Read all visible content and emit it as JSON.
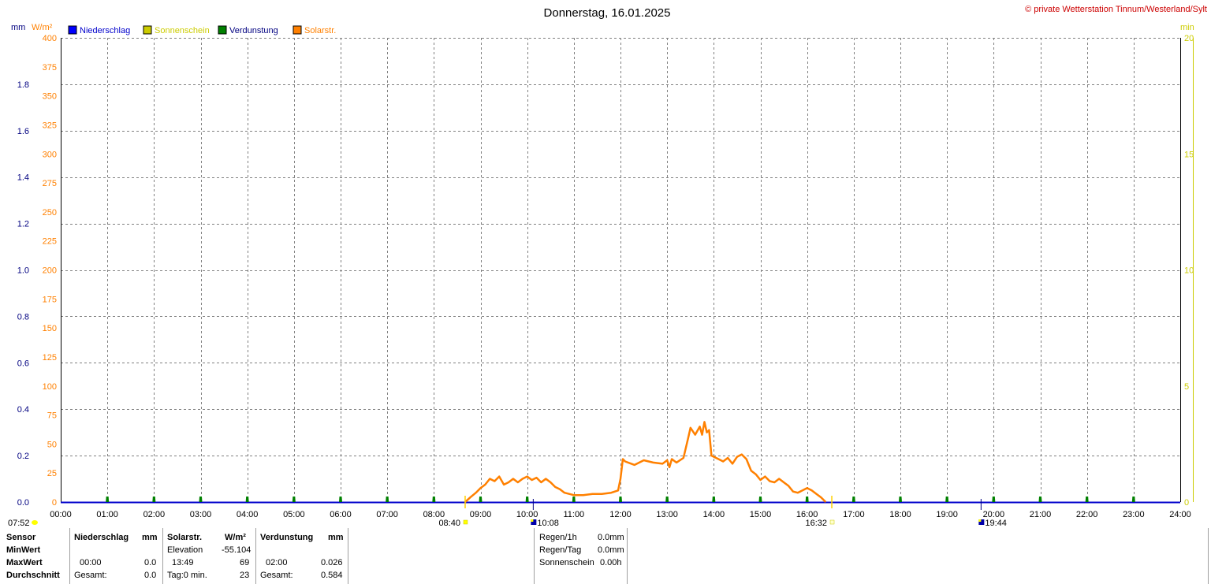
{
  "header": {
    "title": "Donnerstag, 16.01.2025",
    "copyright": "© private Wetterstation Tinnum/Westerland/Sylt"
  },
  "units": {
    "mm": "mm",
    "wm2": "W/m²",
    "min": "min"
  },
  "legend": [
    {
      "label": "Niederschlag",
      "color": "#0000ff",
      "text_color": "#0000cc"
    },
    {
      "label": "Sonnenschein",
      "color": "#cccc00",
      "text_color": "#cccc00"
    },
    {
      "label": "Verdunstung",
      "color": "#008000",
      "text_color": "#000080"
    },
    {
      "label": "Solarstr.",
      "color": "#ff8000",
      "text_color": "#ff8000"
    }
  ],
  "chart_data": {
    "type": "line",
    "title": "Donnerstag, 16.01.2025",
    "x_labels": [
      "00:00",
      "01:00",
      "02:00",
      "03:00",
      "04:00",
      "05:00",
      "06:00",
      "07:00",
      "08:00",
      "09:00",
      "10:00",
      "11:00",
      "12:00",
      "13:00",
      "14:00",
      "15:00",
      "16:00",
      "17:00",
      "18:00",
      "19:00",
      "20:00",
      "21:00",
      "22:00",
      "23:00",
      "24:00"
    ],
    "xlim_hours": [
      0,
      24
    ],
    "y_left_mm": {
      "ticks": [
        "0.0",
        "0.2",
        "0.4",
        "0.6",
        "0.8",
        "1.0",
        "1.2",
        "1.4",
        "1.6",
        "1.8"
      ],
      "ylim": [
        0,
        2.0
      ]
    },
    "y_left_wm2": {
      "ticks": [
        "0",
        "25",
        "50",
        "75",
        "100",
        "125",
        "150",
        "175",
        "200",
        "225",
        "250",
        "275",
        "300",
        "325",
        "350",
        "375",
        "400"
      ],
      "ylim": [
        0,
        400
      ]
    },
    "y_right_min": {
      "ticks": [
        "0",
        "5",
        "10",
        "15",
        "20"
      ],
      "ylim": [
        0,
        20
      ]
    },
    "grid": true,
    "series": [
      {
        "name": "Solarstr.",
        "color": "#ff8000",
        "unit": "W/m²",
        "points": [
          [
            8.67,
            0
          ],
          [
            8.78,
            4
          ],
          [
            8.9,
            8
          ],
          [
            9.0,
            12
          ],
          [
            9.1,
            15
          ],
          [
            9.2,
            20
          ],
          [
            9.3,
            18
          ],
          [
            9.4,
            22
          ],
          [
            9.5,
            15
          ],
          [
            9.6,
            17
          ],
          [
            9.7,
            20
          ],
          [
            9.8,
            17
          ],
          [
            9.9,
            20
          ],
          [
            10.0,
            22
          ],
          [
            10.1,
            19
          ],
          [
            10.2,
            21
          ],
          [
            10.3,
            17
          ],
          [
            10.4,
            20
          ],
          [
            10.5,
            17
          ],
          [
            10.6,
            13
          ],
          [
            10.7,
            11
          ],
          [
            10.8,
            8
          ],
          [
            10.9,
            7
          ],
          [
            11.0,
            6
          ],
          [
            11.2,
            6
          ],
          [
            11.4,
            7
          ],
          [
            11.6,
            7
          ],
          [
            11.8,
            8
          ],
          [
            11.95,
            10
          ],
          [
            12.0,
            20
          ],
          [
            12.05,
            37
          ],
          [
            12.1,
            35
          ],
          [
            12.3,
            32
          ],
          [
            12.5,
            36
          ],
          [
            12.7,
            34
          ],
          [
            12.9,
            33
          ],
          [
            13.0,
            36
          ],
          [
            13.05,
            30
          ],
          [
            13.1,
            37
          ],
          [
            13.2,
            34
          ],
          [
            13.35,
            38
          ],
          [
            13.45,
            55
          ],
          [
            13.5,
            64
          ],
          [
            13.6,
            58
          ],
          [
            13.7,
            65
          ],
          [
            13.75,
            58
          ],
          [
            13.8,
            69
          ],
          [
            13.85,
            60
          ],
          [
            13.9,
            62
          ],
          [
            13.95,
            40
          ],
          [
            14.1,
            37
          ],
          [
            14.2,
            35
          ],
          [
            14.3,
            38
          ],
          [
            14.4,
            33
          ],
          [
            14.5,
            39
          ],
          [
            14.6,
            41
          ],
          [
            14.7,
            37
          ],
          [
            14.8,
            27
          ],
          [
            14.9,
            24
          ],
          [
            15.0,
            19
          ],
          [
            15.1,
            22
          ],
          [
            15.2,
            18
          ],
          [
            15.3,
            17
          ],
          [
            15.4,
            20
          ],
          [
            15.5,
            17
          ],
          [
            15.6,
            14
          ],
          [
            15.7,
            9
          ],
          [
            15.8,
            8
          ],
          [
            15.9,
            10
          ],
          [
            16.0,
            12
          ],
          [
            16.1,
            10
          ],
          [
            16.2,
            7
          ],
          [
            16.3,
            4
          ],
          [
            16.35,
            2
          ],
          [
            16.4,
            0
          ]
        ]
      },
      {
        "name": "Verdunstung",
        "color": "#008000",
        "unit": "mm",
        "markers_hours": [
          1,
          2,
          3,
          4,
          5,
          6,
          7,
          8,
          9,
          10,
          11,
          12,
          13,
          14,
          15,
          16,
          17,
          18,
          19,
          20,
          21,
          22,
          23
        ]
      }
    ],
    "annotations": [
      {
        "label": "07:52",
        "hour": 0.0,
        "icon": "sun"
      },
      {
        "label": "08:40",
        "hour": 8.67,
        "icon": "sunrise"
      },
      {
        "label": "10:08",
        "hour": 10.13,
        "icon": "moon"
      },
      {
        "label": "16:32",
        "hour": 16.53,
        "icon": "sunset"
      },
      {
        "label": "19:44",
        "hour": 19.73,
        "icon": "moon"
      }
    ]
  },
  "stats": {
    "col_sensor": {
      "header": "Sensor",
      "rows": [
        "MinWert",
        "MaxWert",
        "Durchschnitt"
      ]
    },
    "col_rain": {
      "header": "Niederschlag",
      "unit": "mm",
      "max_time": "00:00",
      "max_val": "0.0",
      "total_label": "Gesamt:",
      "total_val": "0.0"
    },
    "col_solar": {
      "header": "Solarstr.",
      "unit": "W/m²",
      "min_label": "Elevation",
      "min_val": "-55.104",
      "max_time": "13:49",
      "max_val": "69",
      "day_label": "Tag:0 min.",
      "avg_val": "23"
    },
    "col_evap": {
      "header": "Verdunstung",
      "unit": "mm",
      "max_time": "02:00",
      "max_val": "0.026",
      "total_label": "Gesamt:",
      "total_val": "0.584"
    },
    "col_summary": [
      {
        "label": "Regen/1h",
        "value": "0.0mm"
      },
      {
        "label": "Regen/Tag",
        "value": "0.0mm"
      },
      {
        "label": "Sonnenschein",
        "value": "0.00h"
      }
    ]
  }
}
